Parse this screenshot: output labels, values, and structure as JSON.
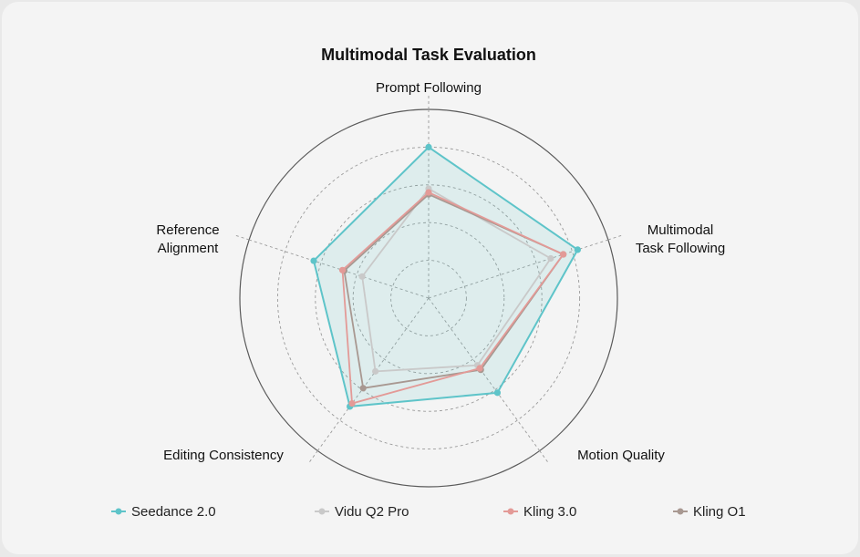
{
  "chart_data": {
    "type": "radar",
    "title": "Multimodal Task Evaluation",
    "axes": [
      {
        "label_lines": [
          "Prompt Following"
        ]
      },
      {
        "label_lines": [
          "Multimodal",
          "Task Following"
        ]
      },
      {
        "label_lines": [
          "Motion Quality"
        ]
      },
      {
        "label_lines": [
          "Editing Consistency"
        ]
      },
      {
        "label_lines": [
          "Reference",
          "Alignment"
        ]
      }
    ],
    "range": [
      0,
      1
    ],
    "grid_rings": [
      0.2,
      0.4,
      0.6,
      0.8
    ],
    "series": [
      {
        "name": "Seedance 2.0",
        "color": "#5ec4c9",
        "fill": true,
        "values": [
          0.8,
          0.83,
          0.62,
          0.71,
          0.64
        ]
      },
      {
        "name": "Vidu Q2 Pro",
        "color": "#c9c9c9",
        "fill": false,
        "values": [
          0.58,
          0.68,
          0.44,
          0.48,
          0.37
        ]
      },
      {
        "name": "Kling 3.0",
        "color": "#e39a97",
        "fill": false,
        "values": [
          0.56,
          0.75,
          0.46,
          0.69,
          0.48
        ]
      },
      {
        "name": "Kling O1",
        "color": "#a89891",
        "fill": false,
        "values": [
          0.55,
          0.75,
          0.47,
          0.59,
          0.47
        ]
      }
    ]
  }
}
